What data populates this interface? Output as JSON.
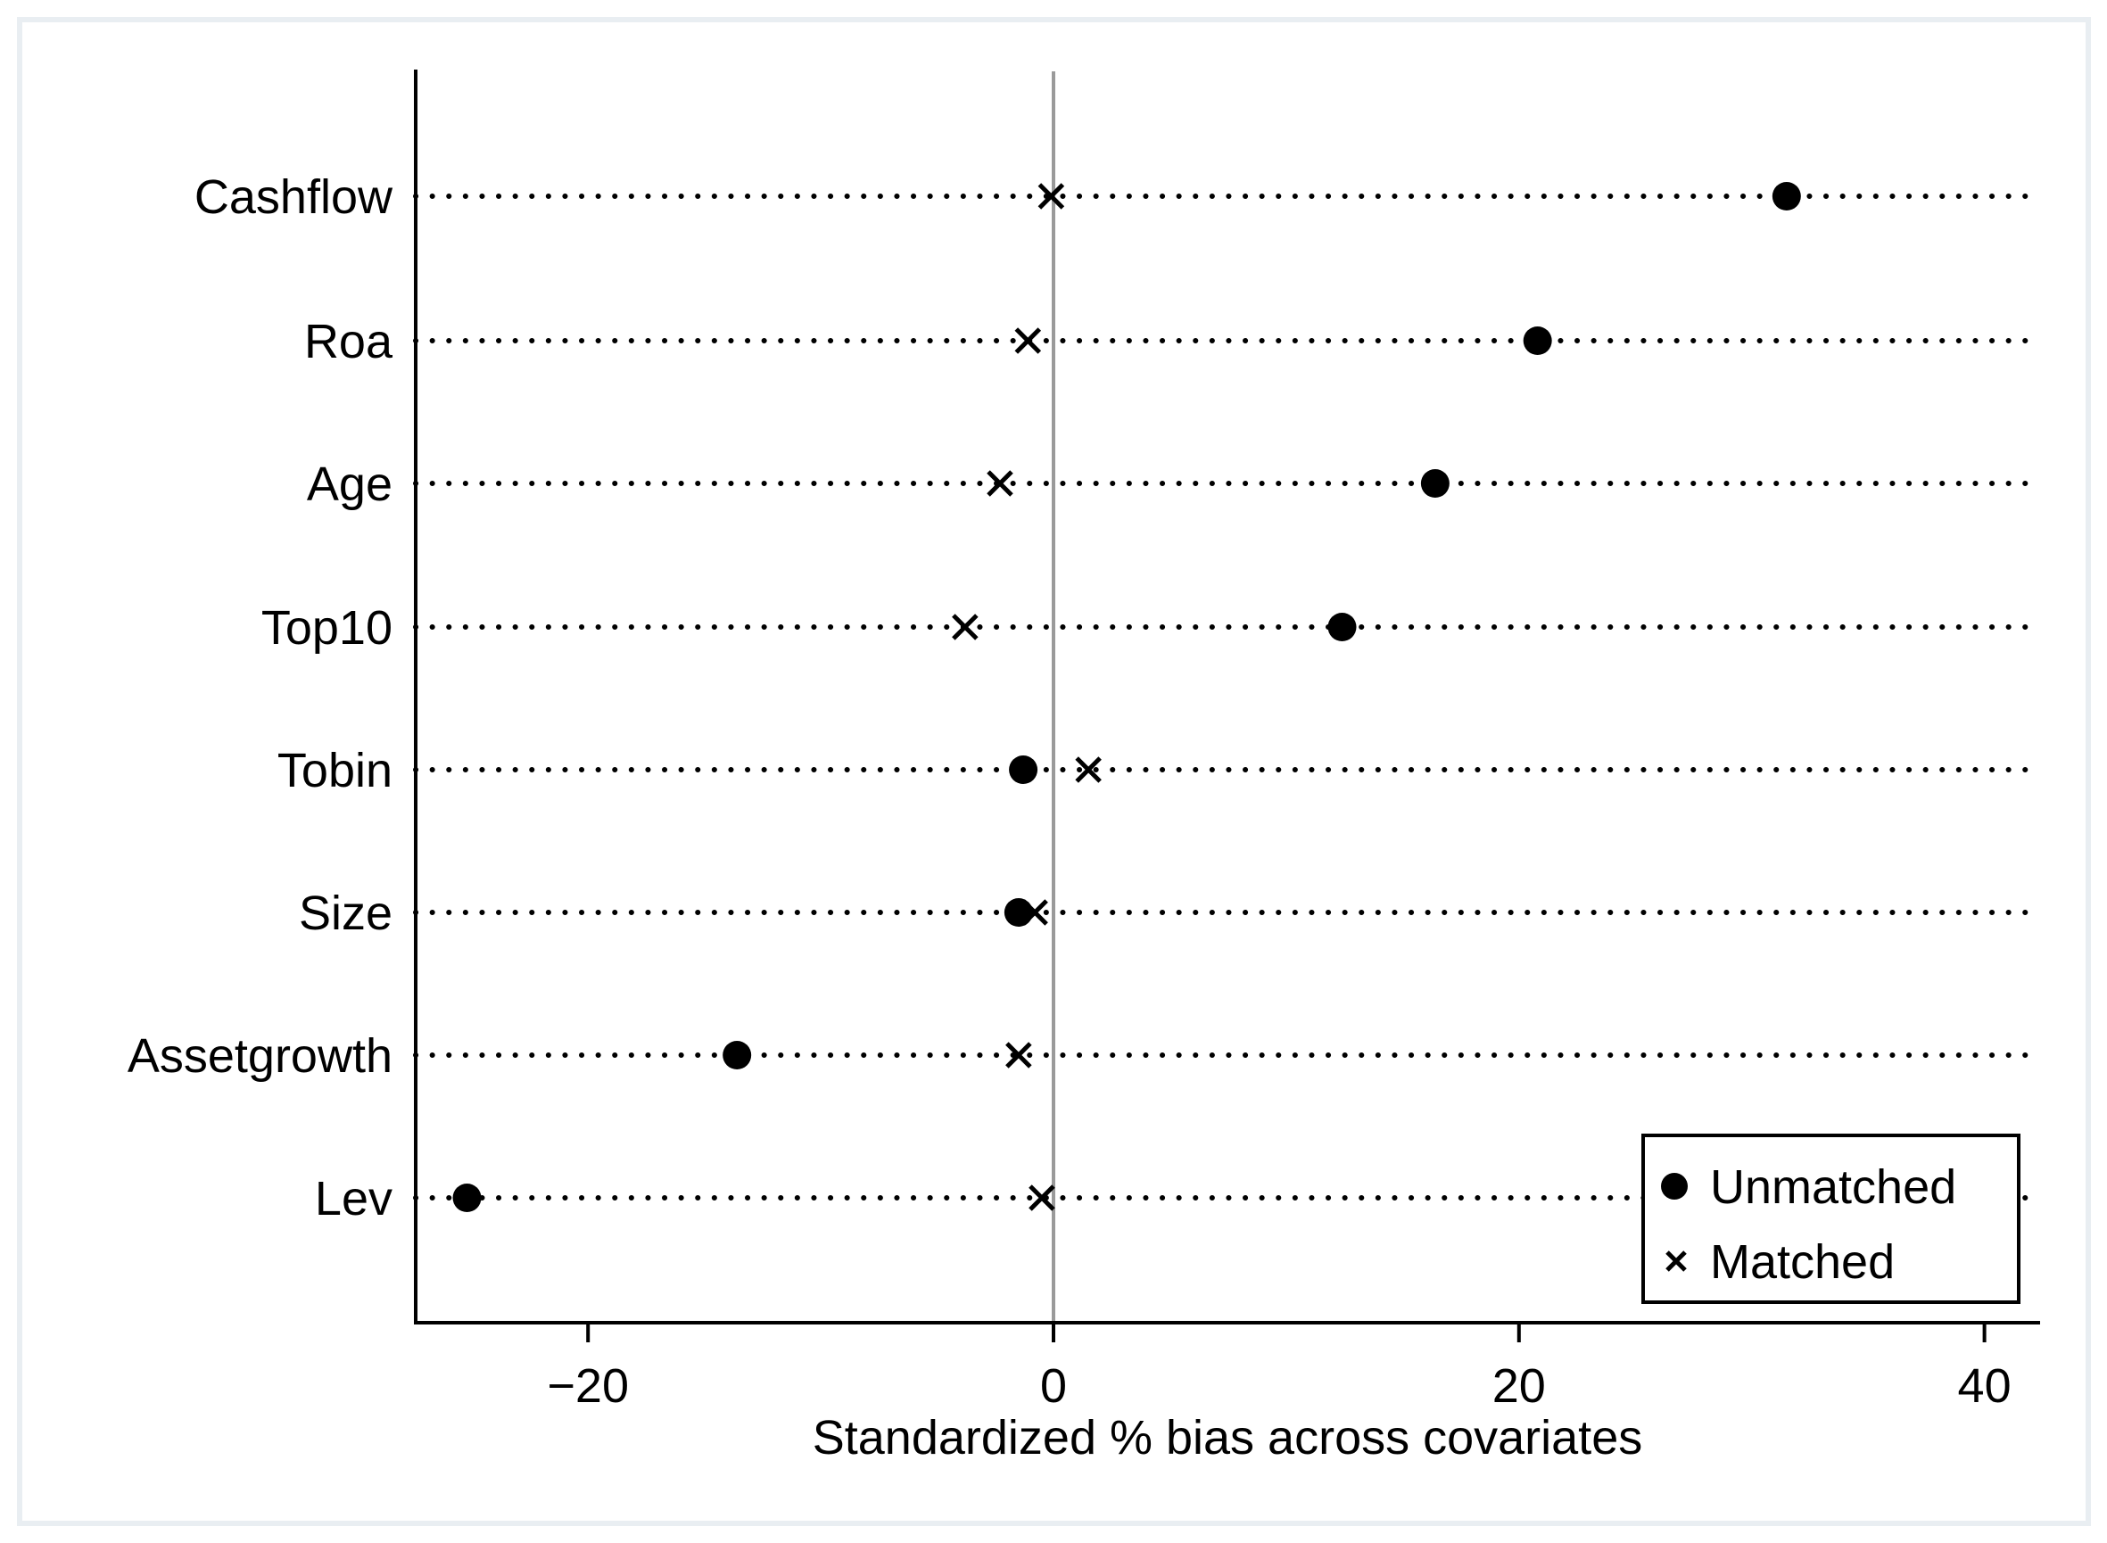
{
  "figure": {
    "background": "#ffffff",
    "border_color": "#e9eef2"
  },
  "chart_data": {
    "type": "scatter",
    "subtype": "dot-plot (covariate balance plot)",
    "title": "",
    "xlabel": "Standardized % bias across covariates",
    "ylabel": "",
    "categories": [
      "Cashflow",
      "Roa",
      "Age",
      "Top10",
      "Tobin",
      "Size",
      "Assetgrowth",
      "Lev"
    ],
    "series": [
      {
        "name": "Unmatched",
        "marker": "circle",
        "values": [
          31.5,
          20.8,
          16.4,
          12.4,
          -1.3,
          -1.5,
          -13.6,
          -25.2
        ]
      },
      {
        "name": "Matched",
        "marker": "x",
        "values": [
          -0.1,
          -1.1,
          -2.3,
          -3.8,
          1.5,
          -0.8,
          -1.5,
          -0.5
        ]
      }
    ],
    "x_ticks": [
      -20,
      0,
      20,
      40
    ],
    "xlim": [
      -27.4,
      42.4
    ],
    "reference_line_x": 0,
    "grid": "horizontal dotted line per category",
    "legend_position": "inside bottom-right",
    "colors": {
      "marker": "#000000",
      "zero_line": "#9a9a9a",
      "text": "#000000",
      "grid_dots": "#000000"
    }
  }
}
